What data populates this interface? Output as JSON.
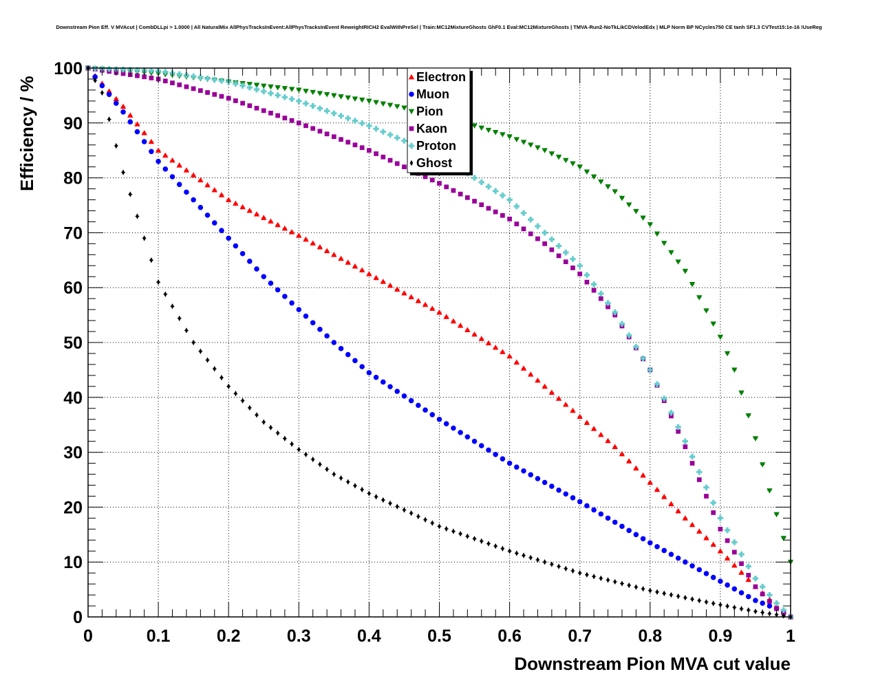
{
  "chart_data": {
    "type": "scatter",
    "title": "Downstream Pion Eff. V MVAcut | CombDLLpi > 1.0000 | All NaturalMix AllPhysTracksInEvent:AllPhysTracksInEvent ReweightRICH2 EvalWithPreSel | Train:MC12MixtureGhosts GhF0.1 Eval:MC12MixtureGhosts | TMVA-Run2-NoTkLikCDVelodEdx | MLP Norm BP NCycles750 CE tanh SF1.3 CVTest15:1e-16 !UseReg",
    "xlabel": "Downstream Pion MVA cut value",
    "ylabel": "Efficiency / %",
    "xlim": [
      0,
      1
    ],
    "ylim": [
      0,
      100
    ],
    "grid": true,
    "legend_position": "top-center",
    "x_ticks": [
      "0",
      "0.1",
      "0.2",
      "0.3",
      "0.4",
      "0.5",
      "0.6",
      "0.7",
      "0.8",
      "0.9",
      "1"
    ],
    "y_ticks": [
      "0",
      "10",
      "20",
      "30",
      "40",
      "50",
      "60",
      "70",
      "80",
      "90",
      "100"
    ],
    "x_points": "0.00 to 1.00 in steps of 0.01",
    "series": [
      {
        "name": "Electron",
        "marker": "triangle-up",
        "color": "#ff0000",
        "points": [
          [
            0,
            100
          ],
          [
            0.05,
            93
          ],
          [
            0.1,
            85
          ],
          [
            0.2,
            76
          ],
          [
            0.3,
            69.5
          ],
          [
            0.4,
            62.5
          ],
          [
            0.5,
            55.5
          ],
          [
            0.6,
            47.5
          ],
          [
            0.7,
            36.5
          ],
          [
            0.75,
            31
          ],
          [
            0.8,
            24.5
          ],
          [
            0.85,
            18
          ],
          [
            0.9,
            12
          ],
          [
            0.95,
            5.5
          ],
          [
            0.98,
            2
          ],
          [
            1,
            0
          ]
        ]
      },
      {
        "name": "Muon",
        "marker": "circle",
        "color": "#0000ff",
        "points": [
          [
            0,
            100
          ],
          [
            0.05,
            92
          ],
          [
            0.1,
            83
          ],
          [
            0.15,
            76
          ],
          [
            0.2,
            69
          ],
          [
            0.25,
            62
          ],
          [
            0.3,
            56
          ],
          [
            0.35,
            50
          ],
          [
            0.4,
            44.5
          ],
          [
            0.5,
            36
          ],
          [
            0.6,
            28
          ],
          [
            0.7,
            21
          ],
          [
            0.8,
            13.5
          ],
          [
            0.9,
            6.5
          ],
          [
            0.95,
            3
          ],
          [
            0.98,
            1.5
          ],
          [
            1,
            0
          ]
        ]
      },
      {
        "name": "Pion",
        "marker": "triangle-down",
        "color": "#008000",
        "points": [
          [
            0,
            100
          ],
          [
            0.1,
            99
          ],
          [
            0.2,
            97.5
          ],
          [
            0.3,
            96
          ],
          [
            0.4,
            94
          ],
          [
            0.5,
            91.5
          ],
          [
            0.6,
            87.5
          ],
          [
            0.65,
            85
          ],
          [
            0.7,
            82
          ],
          [
            0.75,
            77.5
          ],
          [
            0.8,
            71.5
          ],
          [
            0.85,
            63
          ],
          [
            0.9,
            51
          ],
          [
            0.92,
            45
          ],
          [
            0.95,
            32.5
          ],
          [
            0.97,
            23
          ],
          [
            1,
            10
          ]
        ]
      },
      {
        "name": "Kaon",
        "marker": "square",
        "color": "#990099",
        "points": [
          [
            0,
            100
          ],
          [
            0.1,
            98
          ],
          [
            0.2,
            94.5
          ],
          [
            0.3,
            90
          ],
          [
            0.4,
            85
          ],
          [
            0.5,
            79
          ],
          [
            0.6,
            72.5
          ],
          [
            0.65,
            68
          ],
          [
            0.7,
            62.5
          ],
          [
            0.75,
            55
          ],
          [
            0.8,
            45
          ],
          [
            0.85,
            31
          ],
          [
            0.9,
            16
          ],
          [
            0.95,
            5.5
          ],
          [
            0.98,
            1.5
          ],
          [
            1,
            0
          ]
        ]
      },
      {
        "name": "Proton",
        "marker": "cross",
        "color": "#66cccc",
        "points": [
          [
            0,
            100
          ],
          [
            0.1,
            99.5
          ],
          [
            0.2,
            97.5
          ],
          [
            0.3,
            94
          ],
          [
            0.4,
            89.5
          ],
          [
            0.5,
            84
          ],
          [
            0.6,
            76
          ],
          [
            0.7,
            64
          ],
          [
            0.75,
            55.5
          ],
          [
            0.8,
            45
          ],
          [
            0.85,
            32
          ],
          [
            0.9,
            18
          ],
          [
            0.95,
            7
          ],
          [
            0.98,
            2.5
          ],
          [
            1,
            0
          ]
        ]
      },
      {
        "name": "Ghost",
        "marker": "diamond",
        "color": "#000000",
        "points": [
          [
            0,
            100
          ],
          [
            0.02,
            95.5
          ],
          [
            0.05,
            81
          ],
          [
            0.1,
            61
          ],
          [
            0.15,
            50
          ],
          [
            0.2,
            42
          ],
          [
            0.25,
            35.5
          ],
          [
            0.3,
            30.5
          ],
          [
            0.35,
            26
          ],
          [
            0.4,
            22.5
          ],
          [
            0.5,
            16.5
          ],
          [
            0.6,
            12
          ],
          [
            0.7,
            8
          ],
          [
            0.8,
            4.8
          ],
          [
            0.9,
            2.2
          ],
          [
            0.95,
            1
          ],
          [
            1,
            0
          ]
        ]
      }
    ]
  }
}
